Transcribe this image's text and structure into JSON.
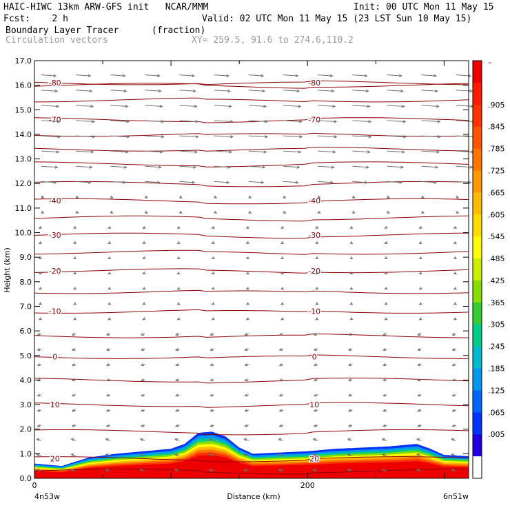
{
  "header": {
    "title": "HAIC-HIWC 13km ARW-GFS init   NCAR/MMM",
    "init": "Init: 00 UTC Mon 11 May 15",
    "fcst": "Fcst:    2 h",
    "valid": "Valid: 02 UTC Mon 11 May 15 (23 LST Sun 10 May 15)",
    "field1": "Boundary Layer Tracer",
    "field1_units": "(fraction)",
    "field2": "Circulation vectors",
    "xy": "XY= 259.5, 91.6 to 274.6,110.2"
  },
  "chart_data": {
    "type": "cross-section",
    "ylabel": "Height (km)",
    "xlabel": "Distance (km)",
    "x_left_label": "4n53w",
    "x_right_label": "6n51w",
    "ylim": [
      0,
      17
    ],
    "xlim": [
      0,
      318
    ],
    "y_ticks": [
      "0.0",
      "1.0",
      "2.0",
      "3.0",
      "4.0",
      "5.0",
      "6.0",
      "7.0",
      "8.0",
      "9.0",
      "10.0",
      "11.0",
      "12.0",
      "13.0",
      "14.0",
      "15.0",
      "16.0",
      "17.0"
    ],
    "x_ticks": [
      {
        "value": 0,
        "label": "0"
      },
      {
        "value": 200,
        "label": "200"
      }
    ],
    "temperature_contours_C": [
      {
        "value": 20,
        "label": "20",
        "height_km": 0.8
      },
      {
        "value": 10,
        "label": "10",
        "height_km": 3.0
      },
      {
        "value": 0,
        "label": "0",
        "height_km": 4.95
      },
      {
        "value": -10,
        "label": "-10",
        "height_km": 6.8
      },
      {
        "value": -20,
        "label": "-20",
        "height_km": 8.45
      },
      {
        "value": -30,
        "label": "-30",
        "height_km": 9.9
      },
      {
        "value": -40,
        "label": "-40",
        "height_km": 11.3
      },
      {
        "value": -70,
        "label": "-70",
        "height_km": 14.6
      },
      {
        "value": -80,
        "label": "-80",
        "height_km": 16.1
      }
    ],
    "unlabeled_isotherm_heights_km": [
      0.3,
      1.9,
      4.0,
      5.8,
      7.6,
      9.2,
      10.6,
      12.0,
      12.8,
      13.4,
      14.0,
      15.4,
      16.0
    ],
    "tracer_top_km": {
      "x": [
        0,
        20,
        40,
        60,
        80,
        100,
        110,
        120,
        130,
        140,
        150,
        160,
        180,
        200,
        220,
        240,
        260,
        280,
        290,
        300,
        318
      ],
      "y": [
        0.6,
        0.5,
        0.85,
        1.0,
        1.1,
        1.2,
        1.4,
        1.85,
        1.9,
        1.7,
        1.25,
        1.0,
        1.05,
        1.1,
        1.2,
        1.25,
        1.3,
        1.4,
        1.2,
        0.95,
        0.9
      ]
    },
    "colorbar": {
      "labels": [
        ".905",
        ".845",
        ".785",
        ".725",
        ".665",
        ".605",
        ".545",
        ".485",
        ".425",
        ".365",
        ".305",
        ".245",
        ".185",
        ".125",
        ".065",
        ".005"
      ],
      "colors": [
        "#ee0000",
        "#ff1a00",
        "#ff3300",
        "#ff5500",
        "#ff7700",
        "#ff9900",
        "#ffbb00",
        "#ffdd00",
        "#ffff00",
        "#ccee00",
        "#88dd00",
        "#33cc33",
        "#00cc88",
        "#00bbcc",
        "#0099ee",
        "#0066ff",
        "#0033ff",
        "#2200dd",
        "#ffffff"
      ]
    }
  }
}
